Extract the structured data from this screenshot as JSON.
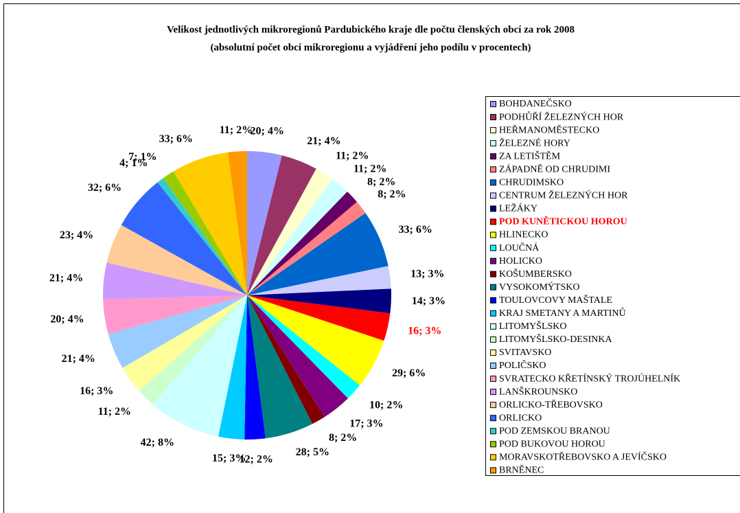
{
  "chart_data": {
    "type": "pie",
    "title": "Velikost jednotlivých mikroregionů Pardubického kraje dle počtu členských obcí za rok 2008",
    "subtitle": "(absolutní počet obcí mikroregionu a vyjádření jeho podílu v procentech)",
    "categories": [
      "BOHDANEČSKO",
      "PODHŮŘÍ ŽELEZNÝCH HOR",
      "HEŘMANOMĚSTECKO",
      "ŽELEZNÉ HORY",
      "ZA LETIŠTĚM",
      "ZÁPADNĚ OD CHRUDIMI",
      "CHRUDIMSKO",
      "CENTRUM ŽELEZNÝCH HOR",
      "LEŽÁKY",
      "POD KUNĚTICKOU HOROU",
      "HLINECKO",
      "LOUČNÁ",
      "HOLICKO",
      "KOŠUMBERSKO",
      "VYSOKOMÝTSKO",
      "TOULOVCOVY MAŠTALE",
      "KRAJ SMETANY A MARTINŮ",
      "LITOMYŠLSKO",
      "LITOMYŠLSKO-DESINKA",
      "SVITAVSKO",
      "POLIČSKO",
      "SVRATECKO KŘETÍNSKÝ TROJÚHELNÍK",
      "LANŠKROUNSKO",
      "ORLICKO-TŘEBOVSKO",
      "ORLICKO",
      "POD ZEMSKOU BRANOU",
      "POD BUKOVOU HOROU",
      "MORAVSKOTŘEBOVSKO A JEVÍČSKO",
      "BRNĚNEC"
    ],
    "values": [
      20,
      21,
      11,
      11,
      8,
      8,
      33,
      13,
      14,
      16,
      29,
      10,
      17,
      8,
      28,
      12,
      15,
      42,
      11,
      16,
      21,
      20,
      21,
      23,
      32,
      4,
      7,
      33,
      11
    ],
    "value_labels": [
      "20; 4%",
      "21; 4%",
      "11; 2%",
      "11; 2%",
      "8; 2%",
      "8; 2%",
      "33; 6%",
      "13; 3%",
      "14; 3%",
      "16; 3%",
      "29; 6%",
      "10; 2%",
      "17; 3%",
      "8; 2%",
      "28; 5%",
      "12; 2%",
      "15; 3%",
      "42; 8%",
      "11; 2%",
      "16; 3%",
      "21; 4%",
      "20; 4%",
      "21; 4%",
      "23; 4%",
      "32; 6%",
      "4; 1%",
      "7; 1%",
      "33; 6%",
      "11; 2%"
    ],
    "colors": [
      "#9999ff",
      "#993366",
      "#ffffcc",
      "#ccffff",
      "#660066",
      "#ff8080",
      "#0066cc",
      "#ccccff",
      "#000080",
      "#ff0000",
      "#ffff00",
      "#00ffff",
      "#800080",
      "#800000",
      "#008080",
      "#0000ff",
      "#00ccff",
      "#ccffff",
      "#ccffcc",
      "#ffff99",
      "#99ccff",
      "#ff99cc",
      "#cc99ff",
      "#ffcc99",
      "#3366ff",
      "#33cccc",
      "#99cc00",
      "#ffcc00",
      "#ff9900"
    ],
    "highlight_index": 9,
    "highlight_color": "#ff0000",
    "legend": "right"
  }
}
